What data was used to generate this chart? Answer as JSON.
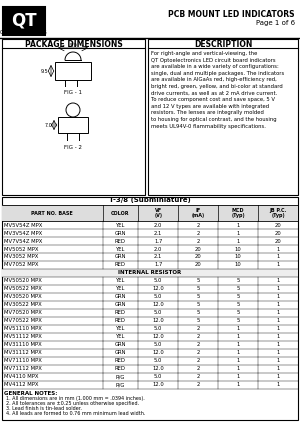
{
  "title_right_line1": "PCB MOUNT LED INDICATORS",
  "title_right_line2": "Page 1 of 6",
  "company": "QT",
  "company_sub": "OPTOELECTRONICS",
  "section_left": "PACKAGE DIMENSIONS",
  "section_right": "DESCRIPTION",
  "description_text": "For right-angle and vertical-viewing, the\nQT Optoelectronics LED circuit board indicators\nare available in a wide variety of configurations:\nsingle, dual and multiple packages. The indicators\nare available in AlGaAs red, high-efficiency red,\nbright red, green, yellow, and bi-color at standard\ndrive currents, as well as at 2 mA drive current.\nTo reduce component cost and save space, 5 V\nand 12 V types are available with integrated\nresistors. The lenses are integrally molded\nto housing for optical contrast, and the housing\nmeets UL94V-0 flammability specifications.",
  "fig1_label": "FIG - 1",
  "fig2_label": "FIG - 2",
  "general_notes_title": "GENERAL NOTES:",
  "general_notes": [
    "1. All dimensions are in mm (1.000 mm = .0394 inches).",
    "2. All tolerances are ±0.25 unless otherwise specified.",
    "3. Lead finish is tin-lead solder.",
    "4. All leads are formed to 0.76 mm minimum lead width."
  ],
  "table_rows": [
    [
      "MV5V54Z MPX",
      "YEL",
      "2.0",
      "2",
      "1",
      "20"
    ],
    [
      "MV3V54Z MPX",
      "GRN",
      "2.1",
      "2",
      "1",
      "20"
    ],
    [
      "MV7V54Z MPX",
      "RED",
      "1.7",
      "2",
      "1",
      "20"
    ],
    [
      "MV5052 MPX",
      "YEL",
      "2.0",
      "20",
      "10",
      "1"
    ],
    [
      "MV3052 MPX",
      "GRN",
      "2.1",
      "20",
      "10",
      "1"
    ],
    [
      "MV7052 MPX",
      "RED",
      "1.7",
      "20",
      "10",
      "1"
    ],
    [
      "INTERNAL RESISTOR",
      "",
      "",
      "",
      "",
      ""
    ],
    [
      "MV50520 MPX",
      "YEL",
      "5.0",
      "5",
      "5",
      "1"
    ],
    [
      "MV50522 MPX",
      "YEL",
      "12.0",
      "5",
      "5",
      "1"
    ],
    [
      "MV30520 MPX",
      "GRN",
      "5.0",
      "5",
      "5",
      "1"
    ],
    [
      "MV30522 MPX",
      "GRN",
      "12.0",
      "5",
      "5",
      "1"
    ],
    [
      "MV70520 MPX",
      "RED",
      "5.0",
      "5",
      "5",
      "1"
    ],
    [
      "MV70522 MPX",
      "RED",
      "12.0",
      "5",
      "5",
      "1"
    ],
    [
      "MV51110 MPX",
      "YEL",
      "5.0",
      "2",
      "1",
      "1"
    ],
    [
      "MV51112 MPX",
      "YEL",
      "12.0",
      "2",
      "1",
      "1"
    ],
    [
      "MV31110 MPX",
      "GRN",
      "5.0",
      "2",
      "1",
      "1"
    ],
    [
      "MV31112 MPX",
      "GRN",
      "12.0",
      "2",
      "1",
      "1"
    ],
    [
      "MV71110 MPX",
      "RED",
      "5.0",
      "2",
      "1",
      "1"
    ],
    [
      "MV71112 MPX",
      "RED",
      "12.0",
      "2",
      "1",
      "1"
    ],
    [
      "MV4110 MPX",
      "R/G",
      "5.0",
      "2",
      "1",
      "1"
    ],
    [
      "MV4112 MPX",
      "R/G",
      "12.0",
      "2",
      "1",
      "1"
    ]
  ],
  "col_labels": [
    "PART NO. BASE",
    "COLOR",
    "VF\n(V)",
    "IF\n(mA)",
    "MCD\n(Typ)",
    "JB P.C.\n(Typ)"
  ],
  "table_title_text": "T-3/8 (Subminiature)",
  "col_props": [
    0.34,
    0.12,
    0.135,
    0.135,
    0.135,
    0.135
  ],
  "bg_color": "#ffffff",
  "border_color": "#000000",
  "text_color": "#000000"
}
